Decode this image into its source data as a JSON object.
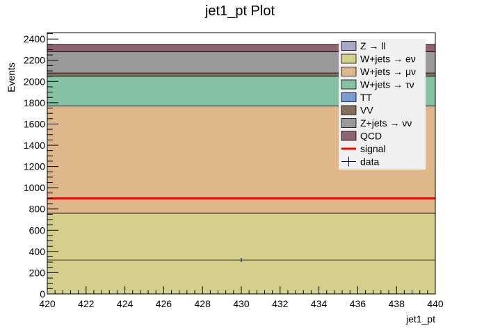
{
  "chart_data": {
    "type": "bar",
    "stacked": true,
    "title": "jet1_pt Plot",
    "xlabel": "jet1_pt",
    "ylabel": "Events",
    "xlim": [
      420,
      440
    ],
    "ylim": [
      0,
      2460
    ],
    "x_ticks": [
      420,
      422,
      424,
      426,
      428,
      430,
      432,
      434,
      436,
      438,
      440
    ],
    "y_ticks": [
      0,
      200,
      400,
      600,
      800,
      1000,
      1200,
      1400,
      1600,
      1800,
      2000,
      2200,
      2400
    ],
    "bin": [
      420,
      440
    ],
    "legend_position": "top-right",
    "series": [
      {
        "name": "Z → ll",
        "value": 0,
        "color": "#aaa6c8"
      },
      {
        "name": "W+jets → eν",
        "value": 760,
        "color": "#d5cf8c"
      },
      {
        "name": "W+jets → μν",
        "value": 1010,
        "color": "#dfb78b"
      },
      {
        "name": "W+jets → τν",
        "value": 280,
        "color": "#84c2a3"
      },
      {
        "name": "TT",
        "value": 0,
        "color": "#7b9bd8"
      },
      {
        "name": "VV",
        "value": 30,
        "color": "#876d5c"
      },
      {
        "name": "Z+jets → νν",
        "value": 200,
        "color": "#9a9a9a"
      },
      {
        "name": "QCD",
        "value": 70,
        "color": "#8f6470"
      }
    ],
    "signal": {
      "name": "signal",
      "value": 900,
      "color": "#ff0000"
    },
    "data": {
      "name": "data",
      "x": 430,
      "y": 320,
      "xerr": 0,
      "yerr": 20,
      "color": "#000080"
    },
    "inner_line": {
      "value": 320
    }
  }
}
